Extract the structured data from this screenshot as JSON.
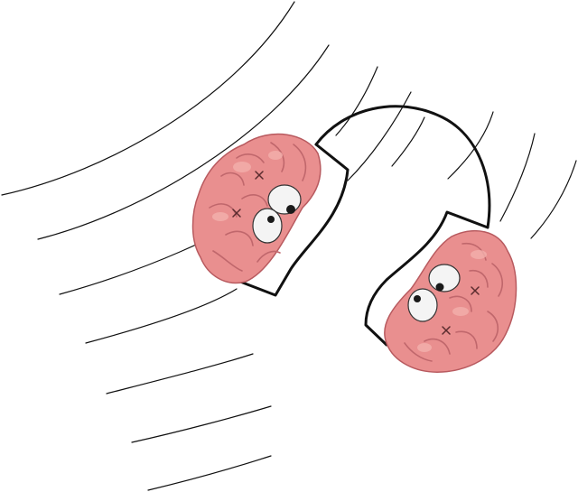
{
  "illustration": {
    "subject": "",
    "colors": {
      "background": "#ffffff",
      "line": "#111111",
      "brain_fill": "#e98f8f",
      "brain_shadow": "#d36e72",
      "brain_highlight": "#f3b0ac",
      "eye_white": "#f4f4f4",
      "pupil": "#1a1a1a"
    },
    "icons": {
      "left_earcup": "brain-icon",
      "right_earcup": "brain-icon",
      "band": "headphone-band-icon"
    }
  }
}
